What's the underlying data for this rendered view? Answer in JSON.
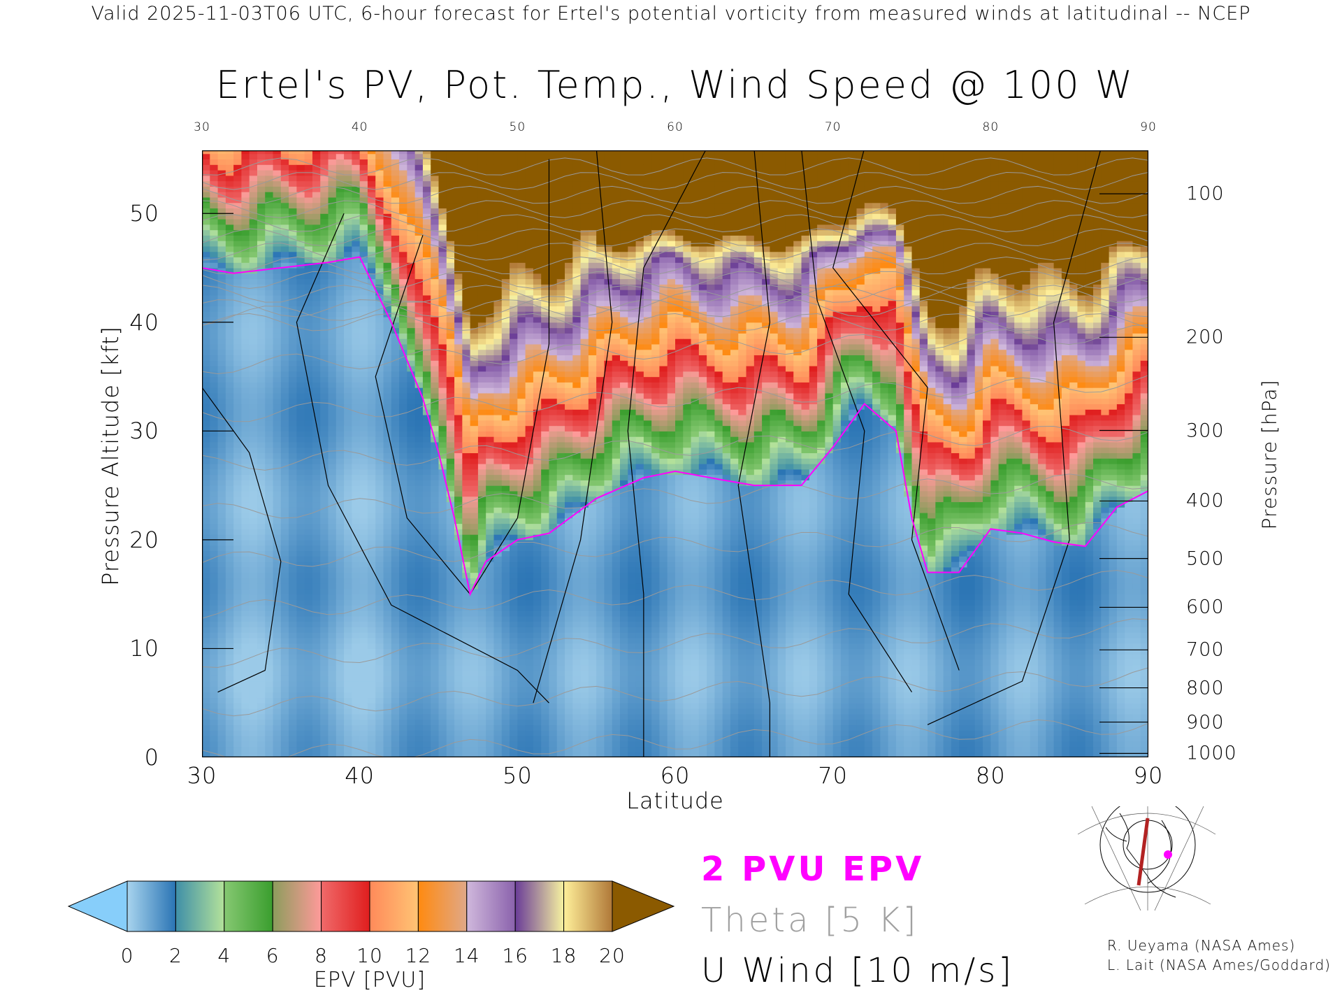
{
  "header": {
    "suptitle": "Valid 2025-11-03T06 UTC, 6-hour forecast for Ertel's potential vorticity from measured winds at latitudinal -- NCEP"
  },
  "chart_data": {
    "type": "heatmap",
    "title": "Ertel's PV, Pot. Temp., Wind Speed @ 100 W",
    "xlabel": "Latitude",
    "ylabel": "Pressure Altitude [kft]",
    "y2label": "Pressure [hPa]",
    "xlim": [
      30,
      90
    ],
    "ylim": [
      0,
      55.8
    ],
    "x_ticks": [
      "30",
      "40",
      "50",
      "60",
      "70",
      "80",
      "90"
    ],
    "top_x_ticks": [
      "30",
      "40",
      "50",
      "60",
      "70",
      "80",
      "90"
    ],
    "y_ticks": [
      "0",
      "10",
      "20",
      "30",
      "40",
      "50"
    ],
    "pressure_ticks": [
      "100",
      "200",
      "300",
      "400",
      "500",
      "600",
      "700",
      "800",
      "900",
      "1000"
    ],
    "tropopause_2pvu": {
      "lat": [
        30,
        32,
        35,
        38,
        40,
        42,
        44,
        45,
        46,
        47,
        48,
        50,
        52,
        55,
        58,
        60,
        63,
        65,
        68,
        70,
        72,
        74,
        75,
        76,
        78,
        80,
        82,
        84,
        86,
        88,
        90
      ],
      "kft": [
        45,
        44.5,
        45,
        45.5,
        46,
        40,
        33,
        28,
        22,
        15,
        18,
        20,
        20.6,
        23.8,
        25.7,
        26.3,
        25.5,
        25,
        25,
        28.5,
        32.5,
        30,
        22,
        17,
        17,
        21,
        20.6,
        19.8,
        19.4,
        23,
        24.5
      ]
    },
    "colorbar": {
      "label": "EPV [PVU]",
      "ticks": [
        "0",
        "2",
        "4",
        "6",
        "8",
        "10",
        "12",
        "14",
        "16",
        "18",
        "20"
      ],
      "under_color": "#87cefa",
      "over_color": "#8b5a00",
      "segments": [
        [
          "#a8d4ee",
          "#2a74b4"
        ],
        [
          "#3f8fa8",
          "#b4e29a"
        ],
        [
          "#86c872",
          "#3a9e2e"
        ],
        [
          "#8c9c5c",
          "#ff9a9a"
        ],
        [
          "#f06a6a",
          "#e01e1e"
        ],
        [
          "#ff8a5a",
          "#ffc474"
        ],
        [
          "#ff8a10",
          "#e0a888"
        ],
        [
          "#d0b8dc",
          "#8a62ac"
        ],
        [
          "#6a3c98",
          "#f6f2a0"
        ],
        [
          "#fff09a",
          "#b07838"
        ]
      ]
    }
  },
  "legend": {
    "pv_label": "2 PVU EPV",
    "theta_label": "Theta [5 K]",
    "wind_label": "U Wind [10 m/s]",
    "pv_color": "#ff00ff",
    "theta_color": "#a0a0a0"
  },
  "credits": [
    "R. Ueyama (NASA Ames)",
    "L. Lait (NASA Ames/Goddard)"
  ]
}
